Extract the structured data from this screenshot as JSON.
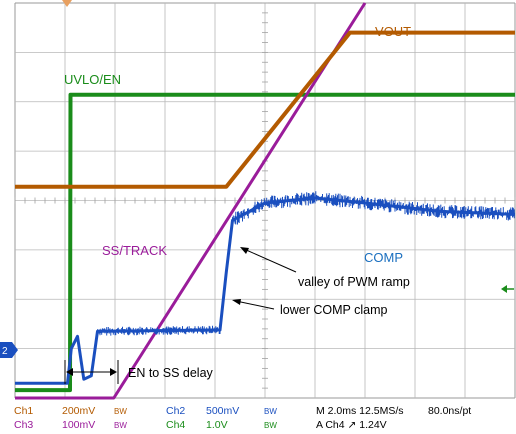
{
  "chart_data": {
    "type": "line",
    "title": "",
    "xlabel": "",
    "ylabel": "",
    "grid": true,
    "x_unit": "ms",
    "xlim": [
      0,
      20
    ],
    "ylim": [
      0,
      8
    ],
    "series": [
      {
        "name": "UVLO/EN",
        "channel": "Ch4",
        "color": "#1a8c1a",
        "x": [
          0,
          2.2,
          2.22,
          20
        ],
        "y": [
          0.16,
          0.16,
          6.14,
          6.14
        ]
      },
      {
        "name": "VOUT",
        "channel": "Ch1",
        "color": "#b35a00",
        "x": [
          0,
          8.45,
          13.4,
          20
        ],
        "y": [
          4.28,
          4.28,
          7.4,
          7.4
        ]
      },
      {
        "name": "SS/TRACK",
        "channel": "Ch3",
        "color": "#9a1c9a",
        "x": [
          0,
          3.95,
          14.0
        ],
        "y": [
          0.0,
          0.0,
          8.0
        ]
      },
      {
        "name": "COMP",
        "channel": "Ch2",
        "color": "#1a4fbf",
        "x": [
          0,
          2.1,
          2.25,
          2.5,
          2.75,
          3.05,
          3.3,
          8.2,
          8.45,
          8.7,
          10.0,
          12.0,
          14.0,
          17.0,
          20.0
        ],
        "y": [
          0.3,
          0.3,
          1.0,
          1.25,
          0.38,
          0.45,
          1.35,
          1.38,
          2.55,
          3.6,
          3.95,
          4.05,
          3.95,
          3.78,
          3.72
        ]
      }
    ],
    "labels": {
      "uvlo": "UVLO/EN",
      "vout": "VOUT",
      "ss": "SS/TRACK",
      "comp": "COMP"
    },
    "annotations": {
      "valley": "valley of PWM ramp",
      "clamp": "lower COMP clamp",
      "delay": "EN to SS delay"
    },
    "ground_marker": "2",
    "footer": {
      "ch1": "Ch1",
      "ch1_scale": "200mV",
      "ch1_bw": "BW",
      "ch2": "Ch2",
      "ch2_scale": "500mV",
      "ch2_bw": "BW",
      "ch3": "Ch3",
      "ch3_scale": "100mV",
      "ch3_bw": "BW",
      "ch4": "Ch4",
      "ch4_scale": "1.0V",
      "ch4_bw": "BW",
      "timebase": "M 2.0ms 12.5MS/s",
      "resolution": "80.0ns/pt",
      "trigger": "A  Ch4  ↗  1.24V"
    }
  }
}
